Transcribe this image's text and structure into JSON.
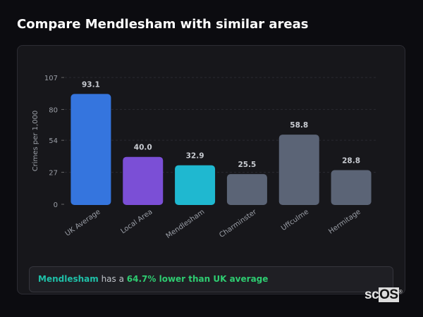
{
  "header": {
    "title": "Compare Mendlesham with similar areas"
  },
  "chart_data": {
    "type": "bar",
    "categories": [
      "UK Average",
      "Local Area",
      "Mendlesham",
      "Charminster",
      "Uffculme",
      "Hermitage"
    ],
    "values": [
      93.1,
      40.0,
      32.9,
      25.5,
      58.8,
      28.8
    ],
    "value_labels": [
      "93.1",
      "40.0",
      "32.9",
      "25.5",
      "58.8",
      "28.8"
    ],
    "colors": [
      "#3575de",
      "#7b4fd6",
      "#1fb8d0",
      "#5b6476",
      "#5b6476",
      "#5b6476"
    ],
    "ylabel": "Crimes per 1,000",
    "xlabel": "",
    "ylim": [
      0,
      107
    ],
    "yticks": [
      0,
      27,
      54,
      80,
      107
    ],
    "grid": true
  },
  "summary": {
    "place": "Mendlesham",
    "middle": " has a ",
    "comparison": "64.7% lower than UK average",
    "place_color": "#1fc0a8",
    "comparison_color": "#2ecc71"
  },
  "logo": {
    "text_a": "sc",
    "text_b": "OS"
  }
}
